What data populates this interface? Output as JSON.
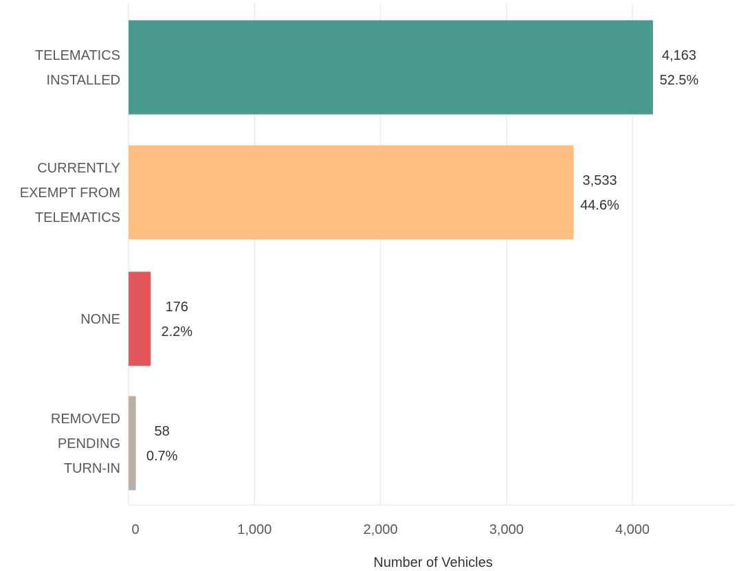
{
  "chart_data": {
    "type": "bar",
    "orientation": "horizontal",
    "categories": [
      [
        "TELEMATICS",
        "INSTALLED"
      ],
      [
        "CURRENTLY",
        "EXEMPT FROM",
        "TELEMATICS"
      ],
      [
        "NONE"
      ],
      [
        "REMOVED",
        "PENDING",
        "TURN-IN"
      ]
    ],
    "values": [
      4163,
      3533,
      176,
      58
    ],
    "value_labels": [
      "4,163",
      "3,533",
      "176",
      "58"
    ],
    "percent_labels": [
      "52.5%",
      "44.6%",
      "2.2%",
      "0.7%"
    ],
    "colors": [
      "#4a9991",
      "#fdbe80",
      "#e2575b",
      "#bbafaa"
    ],
    "xlabel": "Number of Vehicles",
    "ylabel": "",
    "title": "",
    "xticks": [
      0,
      1000,
      2000,
      3000,
      4000
    ],
    "xtick_labels": [
      "0",
      "1,000",
      "2,000",
      "3,000",
      "4,000"
    ],
    "xlim": [
      0,
      4800
    ],
    "grid": "vertical",
    "legend": "none"
  }
}
